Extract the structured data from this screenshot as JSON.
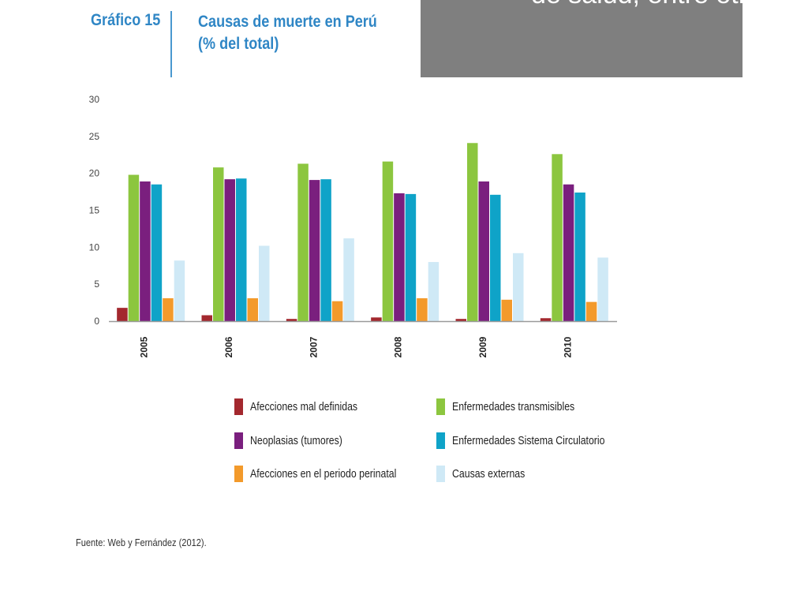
{
  "header": {
    "grafico_label": "Gráfico 15",
    "title_line1": "Causas de muerte en Perú",
    "title_line2": "(% del total)"
  },
  "banner": {
    "text": "de salud, entre otros."
  },
  "chart_data": {
    "type": "bar",
    "title": "Causas de muerte en Perú (% del total)",
    "categories": [
      "2005",
      "2006",
      "2007",
      "2008",
      "2009",
      "2010"
    ],
    "ylim": [
      0,
      30
    ],
    "yticks": [
      0,
      5,
      10,
      15,
      20,
      25,
      30
    ],
    "grid": false,
    "legend_position": "bottom",
    "series": [
      {
        "name": "Afecciones mal definidas",
        "color": "#a3282e",
        "values": [
          1.8,
          0.8,
          0.3,
          0.5,
          0.3,
          0.4
        ]
      },
      {
        "name": "Enfermedades transmisibles",
        "color": "#8cc63f",
        "values": [
          19.8,
          20.8,
          21.3,
          21.6,
          24.1,
          22.6
        ]
      },
      {
        "name": "Neoplasias (tumores)",
        "color": "#7a1f7e",
        "values": [
          18.9,
          19.2,
          19.1,
          17.3,
          18.9,
          18.5
        ]
      },
      {
        "name": "Enfermedades Sistema Circulatorio",
        "color": "#0fa3c8",
        "values": [
          18.5,
          19.3,
          19.2,
          17.2,
          17.1,
          17.4
        ]
      },
      {
        "name": "Afecciones en el periodo perinatal",
        "color": "#f39a2b",
        "values": [
          3.1,
          3.1,
          2.7,
          3.1,
          2.9,
          2.6
        ]
      },
      {
        "name": "Causas externas",
        "color": "#cfe9f6",
        "values": [
          8.2,
          10.2,
          11.2,
          8.0,
          9.2,
          8.6
        ]
      }
    ]
  },
  "legend": {
    "items": [
      {
        "label": "Afecciones mal definidas",
        "color": "#a3282e"
      },
      {
        "label": "Enfermedades transmisibles",
        "color": "#8cc63f"
      },
      {
        "label": "Neoplasias (tumores)",
        "color": "#7a1f7e"
      },
      {
        "label": "Enfermedades Sistema Circulatorio",
        "color": "#0fa3c8"
      },
      {
        "label": "Afecciones en el periodo perinatal",
        "color": "#f39a2b"
      },
      {
        "label": "Causas externas",
        "color": "#cfe9f6"
      }
    ]
  },
  "source": "Fuente: Web y Fernández (2012)."
}
